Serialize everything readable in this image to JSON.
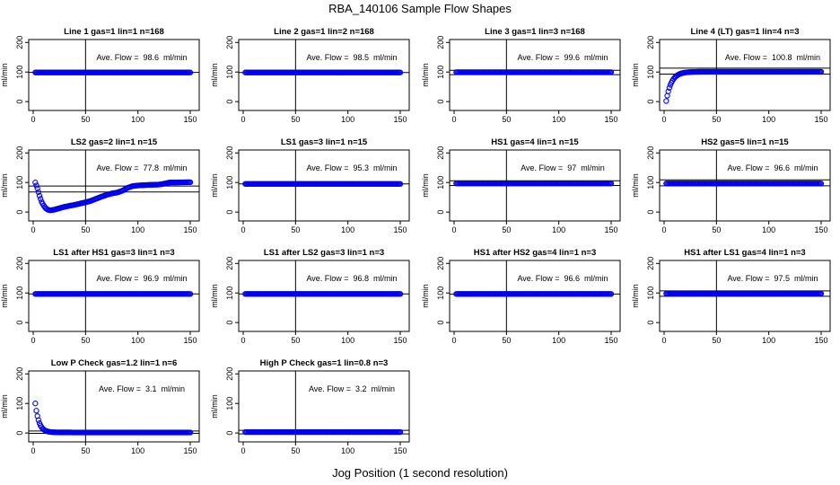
{
  "figure": {
    "title": "RBA_140106  Sample Flow Shapes",
    "xlabel": "Jog Position (1 second resolution)"
  },
  "style": {
    "point_color": "#0000ee",
    "line_color": "#000000"
  },
  "chart_data": [
    {
      "type": "scatter",
      "title": "Line 1 gas=1 lin=1 n=168",
      "ylabel": "ml/min",
      "xlim": [
        0,
        150
      ],
      "ylim": [
        -30,
        210
      ],
      "xticks": [
        0,
        50,
        100,
        150
      ],
      "yticks": [
        0,
        100,
        200
      ],
      "vline_x": 50,
      "hlines_y": [
        98.6
      ],
      "annotation": "Ave. Flow =  98.6  ml/min",
      "mean": 98.6,
      "shape": "flat",
      "start": 98.6,
      "end": 98.6
    },
    {
      "type": "scatter",
      "title": "Line 2 gas=1 lin=2 n=168",
      "ylabel": "ml/min",
      "xlim": [
        0,
        150
      ],
      "ylim": [
        -30,
        210
      ],
      "xticks": [
        0,
        50,
        100,
        150
      ],
      "yticks": [
        0,
        100,
        200
      ],
      "vline_x": 50,
      "hlines_y": [
        98.5
      ],
      "annotation": "Ave. Flow =  98.5  ml/min",
      "mean": 98.5,
      "shape": "flat",
      "start": 98.5,
      "end": 98.5
    },
    {
      "type": "scatter",
      "title": "Line 3 gas=1 lin=3 n=168",
      "ylabel": "ml/min",
      "xlim": [
        0,
        150
      ],
      "ylim": [
        -30,
        210
      ],
      "xticks": [
        0,
        50,
        100,
        150
      ],
      "yticks": [
        0,
        100,
        200
      ],
      "vline_x": 50,
      "hlines_y": [
        91,
        106
      ],
      "annotation": "Ave. Flow =  99.6  ml/min",
      "mean": 99.6,
      "shape": "flat",
      "start": 99.6,
      "end": 99.6
    },
    {
      "type": "scatter",
      "title": "Line 4 (LT) gas=1 lin=4 n=3",
      "ylabel": "ml/min",
      "xlim": [
        0,
        150
      ],
      "ylim": [
        -30,
        210
      ],
      "xticks": [
        0,
        50,
        100,
        150
      ],
      "yticks": [
        0,
        100,
        200
      ],
      "vline_x": 50,
      "hlines_y": [
        93,
        113
      ],
      "annotation": "Ave. Flow =  100.8  ml/min",
      "mean": 100.8,
      "shape": "rise",
      "start": 2,
      "end": 101,
      "tau": 5
    },
    {
      "type": "scatter",
      "title": "LS2 gas=2 lin=1 n=15",
      "ylabel": "ml/min",
      "xlim": [
        0,
        150
      ],
      "ylim": [
        -30,
        210
      ],
      "xticks": [
        0,
        50,
        100,
        150
      ],
      "yticks": [
        0,
        100,
        200
      ],
      "vline_x": 50,
      "hlines_y": [
        68,
        88
      ],
      "annotation": "Ave. Flow =  77.8  ml/min",
      "mean": 77.8,
      "shape": "dip",
      "points": [
        [
          2,
          100
        ],
        [
          4,
          80
        ],
        [
          6,
          55
        ],
        [
          8,
          35
        ],
        [
          10,
          22
        ],
        [
          12,
          13
        ],
        [
          14,
          8
        ],
        [
          16,
          6
        ],
        [
          20,
          8
        ],
        [
          25,
          13
        ],
        [
          30,
          18
        ],
        [
          40,
          25
        ],
        [
          50,
          33
        ],
        [
          55,
          38
        ],
        [
          60,
          45
        ],
        [
          65,
          52
        ],
        [
          70,
          58
        ],
        [
          75,
          63
        ],
        [
          80,
          66
        ],
        [
          85,
          72
        ],
        [
          90,
          82
        ],
        [
          95,
          88
        ],
        [
          100,
          90
        ],
        [
          110,
          92
        ],
        [
          120,
          93
        ],
        [
          125,
          96
        ],
        [
          130,
          100
        ],
        [
          150,
          101
        ]
      ]
    },
    {
      "type": "scatter",
      "title": "LS1 gas=3 lin=1 n=15",
      "ylabel": "ml/min",
      "xlim": [
        0,
        150
      ],
      "ylim": [
        -30,
        210
      ],
      "xticks": [
        0,
        50,
        100,
        150
      ],
      "yticks": [
        0,
        100,
        200
      ],
      "vline_x": 50,
      "hlines_y": [
        95.3
      ],
      "annotation": "Ave. Flow =  95.3  ml/min",
      "mean": 95.3,
      "shape": "flat",
      "start": 95.3,
      "end": 95.3
    },
    {
      "type": "scatter",
      "title": "HS1 gas=4 lin=1 n=15",
      "ylabel": "ml/min",
      "xlim": [
        0,
        150
      ],
      "ylim": [
        -30,
        210
      ],
      "xticks": [
        0,
        50,
        100,
        150
      ],
      "yticks": [
        0,
        100,
        200
      ],
      "vline_x": 50,
      "hlines_y": [
        90,
        106
      ],
      "annotation": "Ave. Flow =  97  ml/min",
      "mean": 97,
      "shape": "flat",
      "start": 97,
      "end": 97
    },
    {
      "type": "scatter",
      "title": "HS2 gas=5 lin=1 n=15",
      "ylabel": "ml/min",
      "xlim": [
        0,
        150
      ],
      "ylim": [
        -30,
        210
      ],
      "xticks": [
        0,
        50,
        100,
        150
      ],
      "yticks": [
        0,
        100,
        200
      ],
      "vline_x": 50,
      "hlines_y": [
        89,
        109
      ],
      "annotation": "Ave. Flow =  96.6  ml/min",
      "mean": 96.6,
      "shape": "flat",
      "start": 96.6,
      "end": 96.6
    },
    {
      "type": "scatter",
      "title": "LS1 after HS1 gas=3 lin=1 n=3",
      "ylabel": "ml/min",
      "xlim": [
        0,
        150
      ],
      "ylim": [
        -30,
        210
      ],
      "xticks": [
        0,
        50,
        100,
        150
      ],
      "yticks": [
        0,
        100,
        200
      ],
      "vline_x": 50,
      "hlines_y": [
        96.9
      ],
      "annotation": "Ave. Flow =  96.9  ml/min",
      "mean": 96.9,
      "shape": "flat",
      "start": 96.9,
      "end": 96.9
    },
    {
      "type": "scatter",
      "title": "LS1 after LS2 gas=3 lin=1 n=3",
      "ylabel": "ml/min",
      "xlim": [
        0,
        150
      ],
      "ylim": [
        -30,
        210
      ],
      "xticks": [
        0,
        50,
        100,
        150
      ],
      "yticks": [
        0,
        100,
        200
      ],
      "vline_x": 50,
      "hlines_y": [
        96.8
      ],
      "annotation": "Ave. Flow =  96.8  ml/min",
      "mean": 96.8,
      "shape": "flat",
      "start": 96.8,
      "end": 96.8
    },
    {
      "type": "scatter",
      "title": "HS1 after HS2 gas=4 lin=1 n=3",
      "ylabel": "ml/min",
      "xlim": [
        0,
        150
      ],
      "ylim": [
        -30,
        210
      ],
      "xticks": [
        0,
        50,
        100,
        150
      ],
      "yticks": [
        0,
        100,
        200
      ],
      "vline_x": 50,
      "hlines_y": [
        96.6
      ],
      "annotation": "Ave. Flow =  96.6  ml/min",
      "mean": 96.6,
      "shape": "flat",
      "start": 96.6,
      "end": 96.6
    },
    {
      "type": "scatter",
      "title": "HS1 after LS1 gas=4 lin=1 n=3",
      "ylabel": "ml/min",
      "xlim": [
        0,
        150
      ],
      "ylim": [
        -30,
        210
      ],
      "xticks": [
        0,
        50,
        100,
        150
      ],
      "yticks": [
        0,
        100,
        200
      ],
      "vline_x": 50,
      "hlines_y": [
        89,
        107
      ],
      "annotation": "Ave. Flow =  97.5  ml/min",
      "mean": 97.5,
      "shape": "flat",
      "start": 97.5,
      "end": 97.5
    },
    {
      "type": "scatter",
      "title": "Low P Check gas=1.2 lin=1 n=6",
      "ylabel": "ml/min",
      "xlim": [
        0,
        150
      ],
      "ylim": [
        -30,
        210
      ],
      "xticks": [
        0,
        50,
        100,
        150
      ],
      "yticks": [
        0,
        100,
        200
      ],
      "vline_x": 50,
      "hlines_y": [
        -1,
        7
      ],
      "annotation": "Ave. Flow =  3.1  ml/min",
      "mean": 3.1,
      "shape": "decay",
      "start": 100,
      "end": 2,
      "tau": 3.5
    },
    {
      "type": "scatter",
      "title": "High P Check gas=1 lin=0.8 n=3",
      "ylabel": "ml/min",
      "xlim": [
        0,
        150
      ],
      "ylim": [
        -30,
        210
      ],
      "xticks": [
        0,
        50,
        100,
        150
      ],
      "yticks": [
        0,
        100,
        200
      ],
      "vline_x": 50,
      "hlines_y": [
        -3,
        9
      ],
      "annotation": "Ave. Flow =  3.2  ml/min",
      "mean": 3.2,
      "shape": "flat",
      "start": 3.2,
      "end": 3.2
    }
  ]
}
